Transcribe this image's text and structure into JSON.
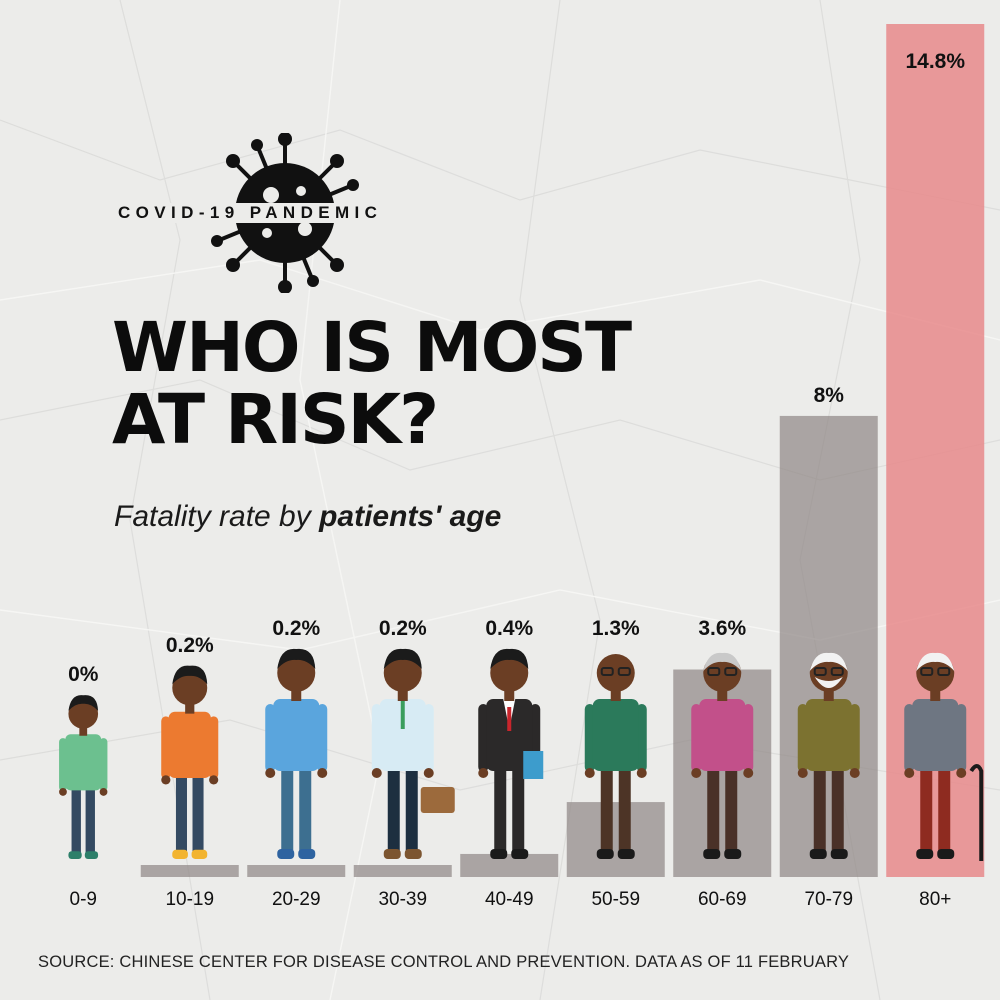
{
  "header": {
    "kicker": "COVID-19 PANDEMIC",
    "title_line1": "WHO IS MOST",
    "title_line2": "AT RISK?",
    "subtitle_plain": "Fatality rate by",
    "subtitle_bold": "patients' age"
  },
  "footer": {
    "source": "SOURCE: CHINESE CENTER FOR DISEASE CONTROL AND PREVENTION. DATA AS OF 11 FEBRUARY"
  },
  "colors": {
    "background": "#ececea",
    "bar": "#8f8685",
    "highlight_bar": "#e8898b",
    "skin": "#6b3e24"
  },
  "icons": [
    "virus-icon",
    "person-figure-icon",
    "backpack-icon",
    "briefcase-icon",
    "folder-icon",
    "walking-cane-icon"
  ],
  "chart_data": {
    "type": "bar",
    "title": "WHO IS MOST AT RISK?",
    "subtitle": "Fatality rate by patients' age",
    "xlabel": "",
    "ylabel": "",
    "categories": [
      "0-9",
      "10-19",
      "20-29",
      "30-39",
      "40-49",
      "50-59",
      "60-69",
      "70-79",
      "80+"
    ],
    "values": [
      0,
      0.2,
      0.2,
      0.2,
      0.4,
      1.3,
      3.6,
      8,
      14.8
    ],
    "value_labels": [
      "0%",
      "0.2%",
      "0.2%",
      "0.2%",
      "0.4%",
      "1.3%",
      "3.6%",
      "8%",
      "14.8%"
    ],
    "highlight_index": 8,
    "ylim": [
      0,
      14.8
    ],
    "grid": false,
    "legend": "none",
    "people": [
      {
        "shirt": "#6cc08f",
        "pants": "#344a62",
        "shoes": "#2d7f6a",
        "hair": "black",
        "extra": "none"
      },
      {
        "shirt": "#ec7a30",
        "pants": "#344a62",
        "shoes": "#f2b431",
        "hair": "black",
        "extra": "none"
      },
      {
        "shirt": "#5aa5dd",
        "pants": "#3d6f90",
        "shoes": "#2e63a0",
        "hair": "black",
        "extra": "backpack"
      },
      {
        "shirt": "#d7ebf4",
        "pants": "#1d2f40",
        "shoes": "#7c5530",
        "hair": "black",
        "extra": "briefcase"
      },
      {
        "shirt": "#2b2929",
        "pants": "#2b2929",
        "shoes": "#1a1a1a",
        "hair": "black",
        "extra": "folder"
      },
      {
        "shirt": "#2b7a5b",
        "pants": "#4d3426",
        "shoes": "#1a1a1a",
        "hair": "bald",
        "extra": "none"
      },
      {
        "shirt": "#c2508a",
        "pants": "#4a3128",
        "shoes": "#1a1a1a",
        "hair": "grey",
        "extra": "none"
      },
      {
        "shirt": "#7c7230",
        "pants": "#4a3128",
        "shoes": "#1a1a1a",
        "hair": "white",
        "extra": "beard"
      },
      {
        "shirt": "#6e7682",
        "pants": "#8e2b20",
        "shoes": "#1a1a1a",
        "hair": "white",
        "extra": "cane"
      }
    ]
  }
}
